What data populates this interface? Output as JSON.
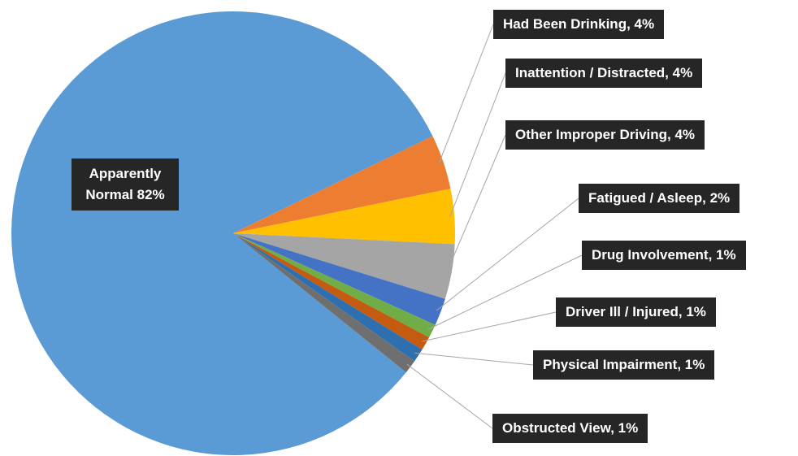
{
  "chart_data": {
    "type": "pie",
    "values": [
      82,
      4,
      4,
      4,
      2,
      1,
      1,
      1,
      1
    ],
    "value_labels": [
      "Apparently Normal 82%",
      "Had Been Drinking, 4%",
      "Inattention / Distracted, 4%",
      "Other Improper Driving, 4%",
      "Fatigued / Asleep, 2%",
      "Drug Involvement, 1%",
      "Driver Ill / Injured, 1%",
      "Physical Impairment, 1%",
      "Obstructed View, 1%"
    ],
    "colors": [
      "#5b9bd5",
      "#ed7d31",
      "#ffc000",
      "#a5a5a5",
      "#4472c4",
      "#70ad47",
      "#c55a11",
      "#2e6fb0",
      "#6f6f6f"
    ]
  }
}
